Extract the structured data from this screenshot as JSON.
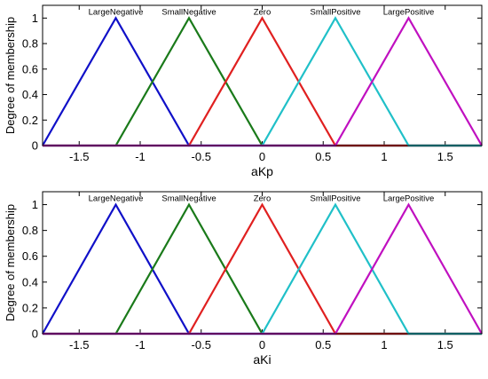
{
  "chart_data": [
    {
      "type": "line",
      "title": "",
      "xlabel": "aKp",
      "ylabel": "Degree of membership",
      "xlim": [
        -1.8,
        1.8
      ],
      "ylim": [
        0,
        1.1
      ],
      "xticks": [
        -1.5,
        -1,
        -0.5,
        0,
        0.5,
        1,
        1.5
      ],
      "xtick_labels": [
        "-1.5",
        "-1",
        "-0.5",
        "0",
        "0.5",
        "1",
        "1.5"
      ],
      "yticks": [
        0,
        0.2,
        0.4,
        0.6,
        0.8,
        1
      ],
      "ytick_labels": [
        "0",
        "0.2",
        "0.4",
        "0.6",
        "0.8",
        "1"
      ],
      "series": [
        {
          "name": "LargeNegative",
          "color": "#1010c8",
          "x": [
            -1.8,
            -1.2,
            -0.6
          ],
          "y": [
            0,
            1,
            0
          ]
        },
        {
          "name": "SmallNegative",
          "color": "#1a7a1a",
          "x": [
            -1.2,
            -0.6,
            0
          ],
          "y": [
            0,
            1,
            0
          ]
        },
        {
          "name": "Zero",
          "color": "#e02020",
          "x": [
            -0.6,
            0,
            0.6
          ],
          "y": [
            0,
            1,
            0
          ]
        },
        {
          "name": "SmallPositive",
          "color": "#20c0c8",
          "x": [
            0,
            0.6,
            1.2
          ],
          "y": [
            0,
            1,
            0
          ]
        },
        {
          "name": "LargePositive",
          "color": "#c010c0",
          "x": [
            0.6,
            1.2,
            1.8
          ],
          "y": [
            0,
            1,
            0
          ]
        }
      ]
    },
    {
      "type": "line",
      "title": "",
      "xlabel": "aKi",
      "ylabel": "Degree of membership",
      "xlim": [
        -1.8,
        1.8
      ],
      "ylim": [
        0,
        1.1
      ],
      "xticks": [
        -1.5,
        -1,
        -0.5,
        0,
        0.5,
        1,
        1.5
      ],
      "xtick_labels": [
        "-1.5",
        "-1",
        "-0.5",
        "0",
        "0.5",
        "1",
        "1.5"
      ],
      "yticks": [
        0,
        0.2,
        0.4,
        0.6,
        0.8,
        1
      ],
      "ytick_labels": [
        "0",
        "0.2",
        "0.4",
        "0.6",
        "0.8",
        "1"
      ],
      "series": [
        {
          "name": "LargeNegative",
          "color": "#1010c8",
          "x": [
            -1.8,
            -1.2,
            -0.6
          ],
          "y": [
            0,
            1,
            0
          ]
        },
        {
          "name": "SmallNegative",
          "color": "#1a7a1a",
          "x": [
            -1.2,
            -0.6,
            0
          ],
          "y": [
            0,
            1,
            0
          ]
        },
        {
          "name": "Zero",
          "color": "#e02020",
          "x": [
            -0.6,
            0,
            0.6
          ],
          "y": [
            0,
            1,
            0
          ]
        },
        {
          "name": "SmallPositive",
          "color": "#20c0c8",
          "x": [
            0,
            0.6,
            1.2
          ],
          "y": [
            0,
            1,
            0
          ]
        },
        {
          "name": "LargePositive",
          "color": "#c010c0",
          "x": [
            0.6,
            1.2,
            1.8
          ],
          "y": [
            0,
            1,
            0
          ]
        }
      ]
    }
  ]
}
